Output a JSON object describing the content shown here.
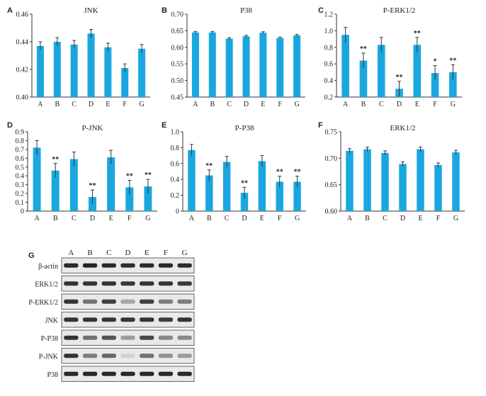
{
  "chart_data": [
    {
      "panel": "A",
      "type": "bar",
      "title": "JNK",
      "categories": [
        "A",
        "B",
        "C",
        "D",
        "E",
        "F",
        "G"
      ],
      "values": [
        0.437,
        0.44,
        0.438,
        0.446,
        0.436,
        0.421,
        0.435
      ],
      "errors": [
        0.003,
        0.003,
        0.003,
        0.003,
        0.003,
        0.003,
        0.003
      ],
      "significance": [
        "",
        "",
        "",
        "",
        "",
        "",
        ""
      ],
      "ylim": [
        0.4,
        0.46
      ],
      "yticks": [
        "0.40",
        "0.42",
        "0.44",
        "0.46"
      ],
      "color": "#1aa7e0"
    },
    {
      "panel": "B",
      "type": "bar",
      "title": "P38",
      "categories": [
        "A",
        "B",
        "C",
        "D",
        "E",
        "F",
        "G"
      ],
      "values": [
        0.645,
        0.645,
        0.626,
        0.633,
        0.644,
        0.628,
        0.636
      ],
      "errors": [
        0.003,
        0.003,
        0.003,
        0.003,
        0.003,
        0.003,
        0.003
      ],
      "significance": [
        "",
        "",
        "",
        "",
        "",
        "",
        ""
      ],
      "ylim": [
        0.45,
        0.7
      ],
      "yticks": [
        "0.45",
        "0.50",
        "0.55",
        "0.60",
        "0.65",
        "0.70"
      ],
      "color": "#1aa7e0"
    },
    {
      "panel": "C",
      "type": "bar",
      "title": "P-ERK1/2",
      "categories": [
        "A",
        "B",
        "C",
        "D",
        "E",
        "F",
        "G"
      ],
      "values": [
        0.95,
        0.64,
        0.83,
        0.3,
        0.83,
        0.49,
        0.5
      ],
      "errors": [
        0.09,
        0.09,
        0.09,
        0.09,
        0.09,
        0.09,
        0.09
      ],
      "significance": [
        "",
        "**",
        "",
        "**",
        "**",
        "*",
        "**"
      ],
      "ylim": [
        0.2,
        1.2
      ],
      "yticks": [
        "0.2",
        "0.4",
        "0.6",
        "0.8",
        "1.0",
        "1.2"
      ],
      "color": "#1aa7e0"
    },
    {
      "panel": "D",
      "type": "bar",
      "title": "P-JNK",
      "categories": [
        "A",
        "B",
        "C",
        "D",
        "E",
        "F",
        "G"
      ],
      "values": [
        0.72,
        0.46,
        0.59,
        0.16,
        0.61,
        0.27,
        0.28
      ],
      "errors": [
        0.08,
        0.08,
        0.08,
        0.08,
        0.08,
        0.08,
        0.08
      ],
      "significance": [
        "",
        "**",
        "",
        "**",
        "",
        "**",
        "**"
      ],
      "ylim": [
        0,
        0.9
      ],
      "yticks": [
        "0",
        "0.1",
        "0.2",
        "0.3",
        "0.4",
        "0.5",
        "0.6",
        "0.7",
        "0.8",
        "0.9"
      ],
      "color": "#1aa7e0"
    },
    {
      "panel": "E",
      "type": "bar",
      "title": "P-P38",
      "categories": [
        "A",
        "B",
        "C",
        "D",
        "E",
        "F",
        "G"
      ],
      "values": [
        0.77,
        0.45,
        0.62,
        0.23,
        0.63,
        0.37,
        0.37
      ],
      "errors": [
        0.07,
        0.07,
        0.07,
        0.07,
        0.07,
        0.07,
        0.07
      ],
      "significance": [
        "",
        "**",
        "",
        "**",
        "",
        "**",
        "**"
      ],
      "ylim": [
        0,
        1.0
      ],
      "yticks": [
        "0",
        "0.2",
        "0.4",
        "0.6",
        "0.8",
        "1.0"
      ],
      "color": "#1aa7e0"
    },
    {
      "panel": "F",
      "type": "bar",
      "title": "ERK1/2",
      "categories": [
        "A",
        "B",
        "C",
        "D",
        "E",
        "F",
        "G"
      ],
      "values": [
        0.714,
        0.717,
        0.71,
        0.689,
        0.717,
        0.687,
        0.711
      ],
      "errors": [
        0.004,
        0.004,
        0.004,
        0.004,
        0.004,
        0.004,
        0.004
      ],
      "significance": [
        "",
        "",
        "",
        "",
        "",
        "",
        ""
      ],
      "ylim": [
        0.6,
        0.75
      ],
      "yticks": [
        "0.60",
        "0.65",
        "0.70",
        "0.75"
      ],
      "color": "#1aa7e0"
    }
  ],
  "blot": {
    "panel": "G",
    "lanes": [
      "A",
      "B",
      "C",
      "D",
      "E",
      "F",
      "G"
    ],
    "rows": [
      {
        "label": "β-actin",
        "intensity": [
          0.9,
          0.92,
          0.9,
          0.88,
          0.9,
          0.9,
          0.88
        ]
      },
      {
        "label": "ERK1/2",
        "intensity": [
          0.85,
          0.85,
          0.85,
          0.83,
          0.85,
          0.85,
          0.83
        ]
      },
      {
        "label": "P-ERK1/2",
        "intensity": [
          0.85,
          0.55,
          0.8,
          0.3,
          0.8,
          0.5,
          0.5
        ]
      },
      {
        "label": "JNK",
        "intensity": [
          0.85,
          0.85,
          0.85,
          0.85,
          0.85,
          0.8,
          0.85
        ]
      },
      {
        "label": "P-P38",
        "intensity": [
          0.85,
          0.55,
          0.7,
          0.35,
          0.75,
          0.45,
          0.45
        ]
      },
      {
        "label": "P-JNK",
        "intensity": [
          0.85,
          0.5,
          0.6,
          0.1,
          0.55,
          0.4,
          0.35
        ]
      },
      {
        "label": "P38",
        "intensity": [
          0.9,
          0.9,
          0.9,
          0.9,
          0.9,
          0.9,
          0.9
        ]
      }
    ]
  }
}
